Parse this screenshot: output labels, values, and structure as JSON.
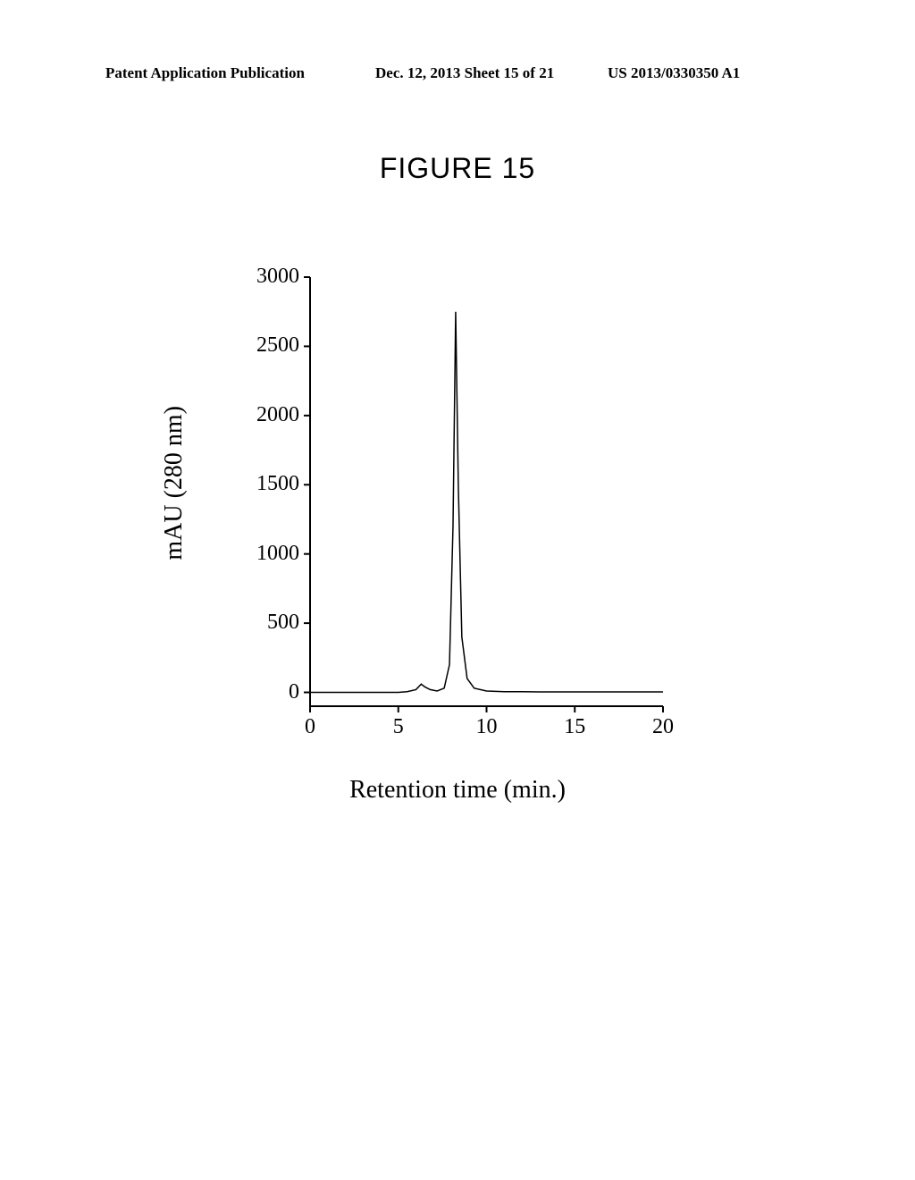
{
  "header": {
    "left": "Patent Application Publication",
    "mid": "Dec. 12, 2013  Sheet 15 of 21",
    "right": "US 2013/0330350 A1"
  },
  "figure_title": "FIGURE 15",
  "chart": {
    "type": "line",
    "ylabel": "mAU (280 nm)",
    "xlabel": "Retention time (min.)",
    "xlim": [
      0,
      20
    ],
    "ylim": [
      -100,
      3000
    ],
    "xticks": [
      0,
      5,
      10,
      15,
      20
    ],
    "yticks": [
      0,
      500,
      1000,
      1500,
      2000,
      2500,
      3000
    ],
    "line_color": "#000000",
    "line_width": 1.5,
    "axis_color": "#000000",
    "axis_width": 2,
    "background_color": "#ffffff",
    "title_fontsize": 32,
    "label_fontsize": 28,
    "tick_fontsize": 24,
    "series": [
      {
        "x": 0.0,
        "y": 0
      },
      {
        "x": 1.0,
        "y": 0
      },
      {
        "x": 2.0,
        "y": 0
      },
      {
        "x": 3.0,
        "y": 0
      },
      {
        "x": 4.0,
        "y": 0
      },
      {
        "x": 5.0,
        "y": 0
      },
      {
        "x": 5.5,
        "y": 5
      },
      {
        "x": 6.0,
        "y": 20
      },
      {
        "x": 6.3,
        "y": 60
      },
      {
        "x": 6.5,
        "y": 40
      },
      {
        "x": 6.8,
        "y": 20
      },
      {
        "x": 7.2,
        "y": 10
      },
      {
        "x": 7.6,
        "y": 30
      },
      {
        "x": 7.9,
        "y": 200
      },
      {
        "x": 8.1,
        "y": 1200
      },
      {
        "x": 8.25,
        "y": 2750
      },
      {
        "x": 8.4,
        "y": 1500
      },
      {
        "x": 8.6,
        "y": 400
      },
      {
        "x": 8.9,
        "y": 100
      },
      {
        "x": 9.3,
        "y": 30
      },
      {
        "x": 10.0,
        "y": 10
      },
      {
        "x": 11.0,
        "y": 5
      },
      {
        "x": 12.0,
        "y": 5
      },
      {
        "x": 13.0,
        "y": 3
      },
      {
        "x": 14.0,
        "y": 3
      },
      {
        "x": 15.0,
        "y": 3
      },
      {
        "x": 16.0,
        "y": 3
      },
      {
        "x": 17.0,
        "y": 3
      },
      {
        "x": 18.0,
        "y": 3
      },
      {
        "x": 19.0,
        "y": 3
      },
      {
        "x": 20.0,
        "y": 3
      }
    ]
  }
}
